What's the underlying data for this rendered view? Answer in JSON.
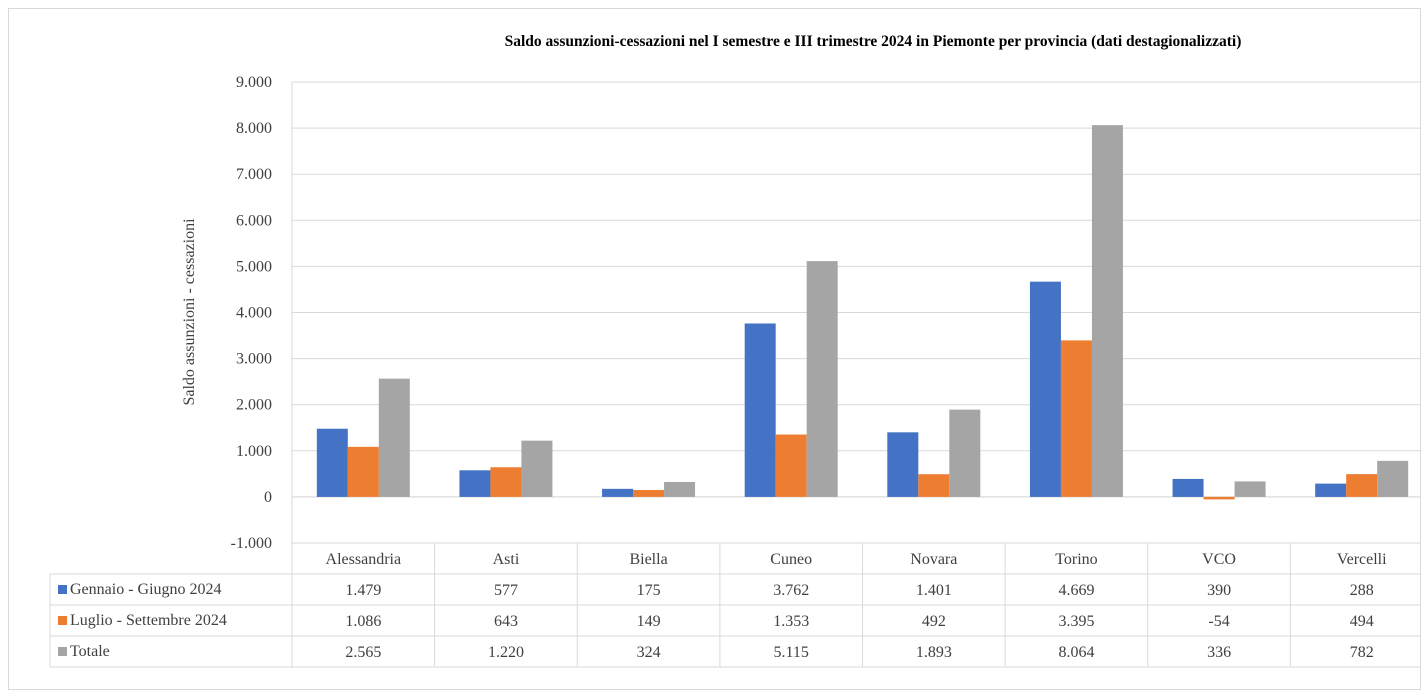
{
  "chart_data": {
    "type": "bar",
    "title": "Saldo assunzioni-cessazioni nel I semestre e III trimestre 2024 in Piemonte per  provincia (dati destagionalizzati)",
    "ylabel": "Saldo assunzioni - cessazioni",
    "xlabel": "",
    "ylim": [
      -1000,
      9000
    ],
    "yticks": [
      -1000,
      0,
      1000,
      2000,
      3000,
      4000,
      5000,
      6000,
      7000,
      8000,
      9000
    ],
    "ytick_labels": [
      "-1.000",
      "0",
      "1.000",
      "2.000",
      "3.000",
      "4.000",
      "5.000",
      "6.000",
      "7.000",
      "8.000",
      "9.000"
    ],
    "grid": true,
    "legend": "data-table",
    "categories": [
      "Alessandria",
      "Asti",
      "Biella",
      "Cuneo",
      "Novara",
      "Torino",
      "VCO",
      "Vercelli"
    ],
    "series": [
      {
        "name": "Gennaio - Giugno 2024",
        "color": "#4472c4",
        "values": [
          1479,
          577,
          175,
          3762,
          1401,
          4669,
          390,
          288
        ],
        "labels": [
          "1.479",
          "577",
          "175",
          "3.762",
          "1.401",
          "4.669",
          "390",
          "288"
        ]
      },
      {
        "name": "Luglio - Settembre 2024",
        "color": "#ed7d31",
        "values": [
          1086,
          643,
          149,
          1353,
          492,
          3395,
          -54,
          494
        ],
        "labels": [
          "1.086",
          "643",
          "149",
          "1.353",
          "492",
          "3.395",
          "-54",
          "494"
        ]
      },
      {
        "name": "Totale",
        "color": "#a5a5a5",
        "values": [
          2565,
          1220,
          324,
          5115,
          1893,
          8064,
          336,
          782
        ],
        "labels": [
          "2.565",
          "1.220",
          "324",
          "5.115",
          "1.893",
          "8.064",
          "336",
          "782"
        ]
      }
    ]
  }
}
